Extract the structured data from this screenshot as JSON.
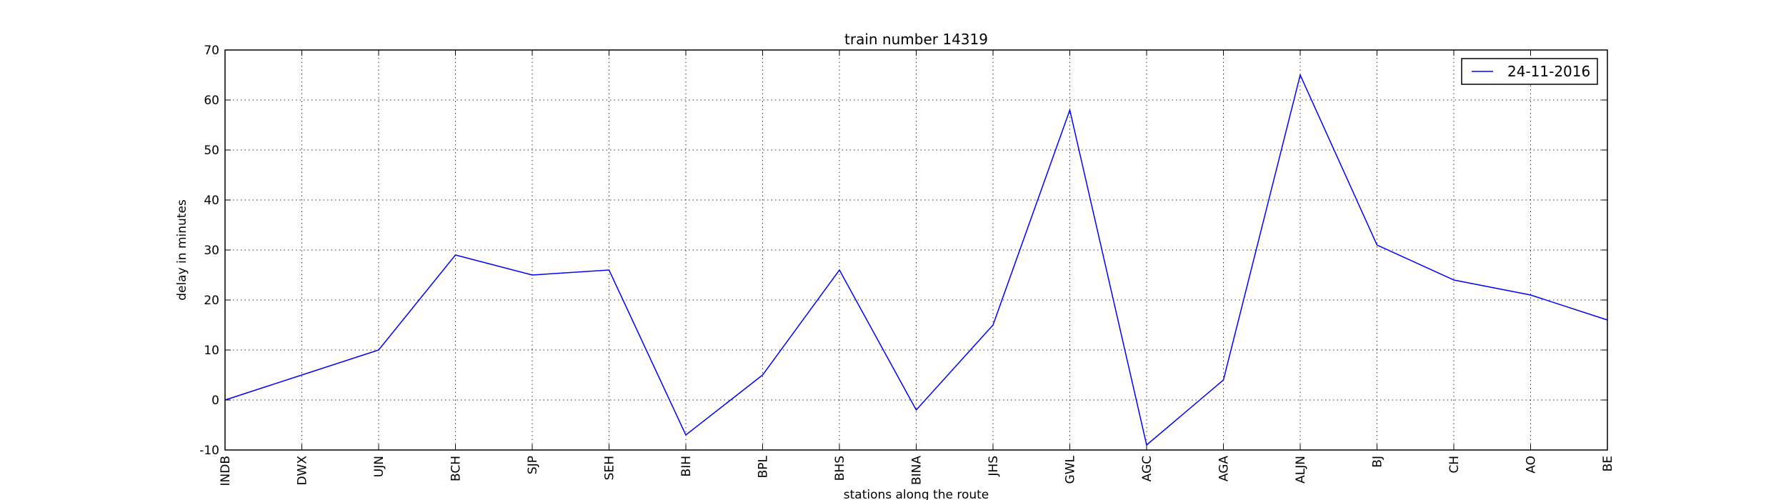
{
  "chart_data": {
    "type": "line",
    "title": "train number 14319",
    "xlabel": "stations along the route",
    "ylabel": "delay in minutes",
    "categories": [
      "INDB",
      "DWX",
      "UJN",
      "BCH",
      "SJP",
      "SEH",
      "BIH",
      "BPL",
      "BHS",
      "BINA",
      "JHS",
      "GWL",
      "AGC",
      "AGA",
      "ALJN",
      "BJ",
      "CH",
      "AO",
      "BE"
    ],
    "series": [
      {
        "name": "24-11-2016",
        "color": "#0000ff",
        "values": [
          0,
          5,
          10,
          29,
          25,
          26,
          -7,
          5,
          26,
          -2,
          15,
          58,
          -9,
          4,
          65,
          31,
          24,
          21,
          16
        ]
      }
    ],
    "ylim": [
      -10,
      70
    ],
    "yticks": [
      -10,
      0,
      10,
      20,
      30,
      40,
      50,
      60,
      70
    ],
    "grid": true,
    "legend_position": "top-right"
  }
}
